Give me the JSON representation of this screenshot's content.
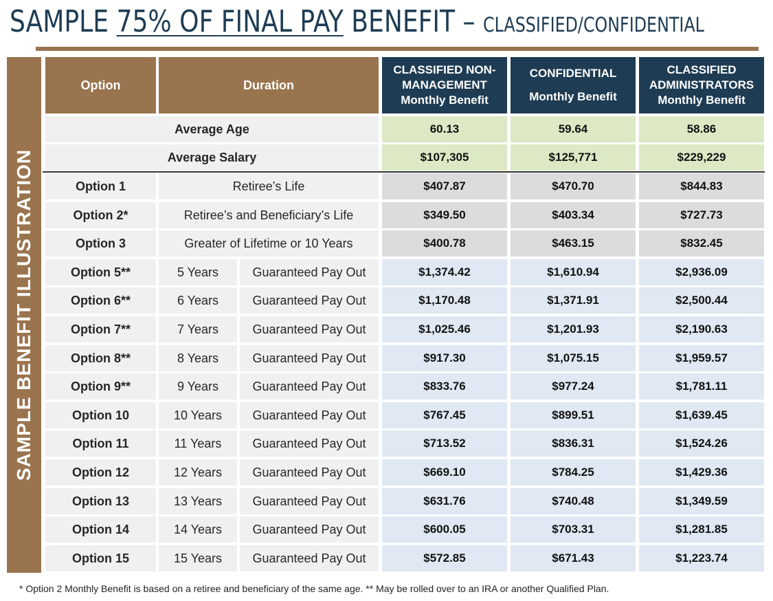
{
  "title": {
    "part1": "SAMPLE ",
    "underlined": "75% OF FINAL PAY",
    "part2": " BENEFIT – ",
    "subtitle": "CLASSIFIED/CONFIDENTIAL"
  },
  "side_label": "SAMPLE BENEFIT ILLUSTRATION",
  "headers": {
    "option": "Option",
    "duration": "Duration",
    "col1": [
      "CLASSIFIED NON-",
      "MANAGEMENT",
      "Monthly Benefit"
    ],
    "col2": [
      "CONFIDENTIAL",
      "Monthly Benefit"
    ],
    "col3": [
      "CLASSIFIED",
      "ADMINISTRATORS",
      "Monthly Benefit"
    ]
  },
  "averages": [
    {
      "label": "Average Age",
      "values": [
        "60.13",
        "59.64",
        "58.86"
      ]
    },
    {
      "label": "Average Salary",
      "values": [
        "$107,305",
        "$125,771",
        "$229,229"
      ]
    }
  ],
  "life_options": [
    {
      "option": "Option 1",
      "duration": "Retiree’s Life",
      "values": [
        "$407.87",
        "$470.70",
        "$844.83"
      ]
    },
    {
      "option": "Option 2*",
      "duration": "Retiree’s and Beneficiary’s Life",
      "values": [
        "$349.50",
        "$403.34",
        "$727.73"
      ]
    },
    {
      "option": "Option 3",
      "duration": "Greater of Lifetime or 10 Years",
      "values": [
        "$400.78",
        "$463.15",
        "$832.45"
      ]
    }
  ],
  "guaranteed_label": "Guaranteed Pay Out",
  "payout_options": [
    {
      "option": "Option 5**",
      "years": "5 Years",
      "values": [
        "$1,374.42",
        "$1,610.94",
        "$2,936.09"
      ]
    },
    {
      "option": "Option 6**",
      "years": "6 Years",
      "values": [
        "$1,170.48",
        "$1,371.91",
        "$2,500.44"
      ]
    },
    {
      "option": "Option 7**",
      "years": "7 Years",
      "values": [
        "$1,025.46",
        "$1,201.93",
        "$2,190.63"
      ]
    },
    {
      "option": "Option 8**",
      "years": "8 Years",
      "values": [
        "$917.30",
        "$1,075.15",
        "$1,959.57"
      ]
    },
    {
      "option": "Option 9**",
      "years": "9 Years",
      "values": [
        "$833.76",
        "$977.24",
        "$1,781.11"
      ]
    },
    {
      "option": "Option 10",
      "years": "10 Years",
      "values": [
        "$767.45",
        "$899.51",
        "$1,639.45"
      ]
    },
    {
      "option": "Option 11",
      "years": "11 Years",
      "values": [
        "$713.52",
        "$836.31",
        "$1,524.26"
      ]
    },
    {
      "option": "Option 12",
      "years": "12 Years",
      "values": [
        "$669.10",
        "$784.25",
        "$1,429.36"
      ]
    },
    {
      "option": "Option 13",
      "years": "13 Years",
      "values": [
        "$631.76",
        "$740.48",
        "$1,349.59"
      ]
    },
    {
      "option": "Option 14",
      "years": "14 Years",
      "values": [
        "$600.05",
        "$703.31",
        "$1,281.85"
      ]
    },
    {
      "option": "Option 15",
      "years": "15 Years",
      "values": [
        "$572.85",
        "$671.43",
        "$1,223.74"
      ]
    }
  ],
  "footnote": "* Option 2 Monthly Benefit is based on a retiree and beneficiary of the same age.  ** May be rolled over to an IRA or another Qualified Plan."
}
